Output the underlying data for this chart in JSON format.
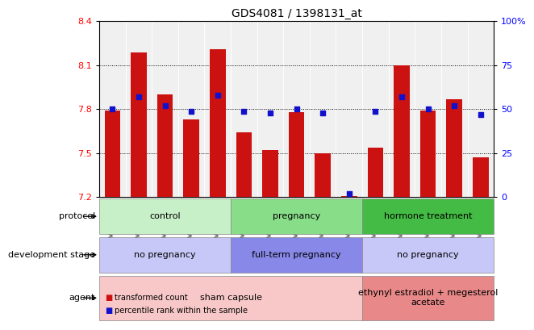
{
  "title": "GDS4081 / 1398131_at",
  "samples": [
    "GSM796392",
    "GSM796393",
    "GSM796394",
    "GSM796395",
    "GSM796396",
    "GSM796397",
    "GSM796398",
    "GSM796399",
    "GSM796400",
    "GSM796401",
    "GSM796402",
    "GSM796403",
    "GSM796404",
    "GSM796405",
    "GSM796406"
  ],
  "bar_values": [
    7.79,
    8.19,
    7.9,
    7.73,
    8.21,
    7.64,
    7.52,
    7.78,
    7.5,
    7.21,
    7.54,
    8.1,
    7.79,
    7.87,
    7.47
  ],
  "dot_values_pct": [
    50,
    57,
    52,
    49,
    58,
    49,
    48,
    50,
    48,
    2,
    49,
    57,
    50,
    52,
    47
  ],
  "ylim_left": [
    7.2,
    8.4
  ],
  "ylim_right": [
    0,
    100
  ],
  "yticks_left": [
    7.2,
    7.5,
    7.8,
    8.1,
    8.4
  ],
  "yticks_right": [
    0,
    25,
    50,
    75,
    100
  ],
  "hlines": [
    7.5,
    7.8,
    8.1
  ],
  "bar_color": "#cc1111",
  "dot_color": "#1111cc",
  "bar_bottom": 7.2,
  "protocol_segments": [
    {
      "start": 0,
      "end": 5,
      "label": "control",
      "color": "#c8f0c8"
    },
    {
      "start": 5,
      "end": 10,
      "label": "pregnancy",
      "color": "#88dd88"
    },
    {
      "start": 10,
      "end": 15,
      "label": "hormone treatment",
      "color": "#44bb44"
    }
  ],
  "devstage_segments": [
    {
      "start": 0,
      "end": 5,
      "label": "no pregnancy",
      "color": "#c8c8f8"
    },
    {
      "start": 5,
      "end": 10,
      "label": "full-term pregnancy",
      "color": "#8888e8"
    },
    {
      "start": 10,
      "end": 15,
      "label": "no pregnancy",
      "color": "#c8c8f8"
    }
  ],
  "agent_segments": [
    {
      "start": 0,
      "end": 10,
      "label": "sham capsule",
      "color": "#f8c8c8"
    },
    {
      "start": 10,
      "end": 15,
      "label": "ethynyl estradiol + megesterol\nacetate",
      "color": "#e88888"
    }
  ],
  "bg_color": "#ffffff",
  "plot_bg_color": "#f0f0f0",
  "legend_labels": [
    "transformed count",
    "percentile rank within the sample"
  ]
}
